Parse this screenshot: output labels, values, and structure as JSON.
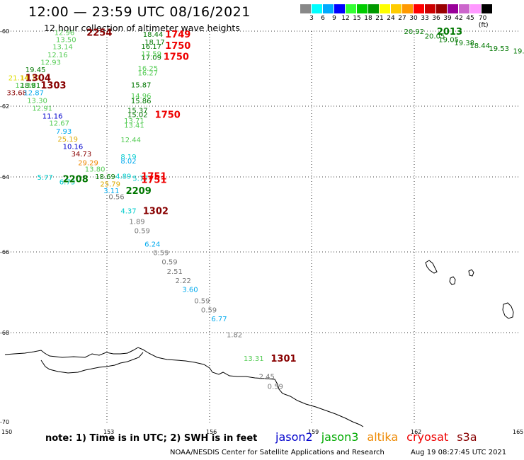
{
  "title": "12:00 — 23:59 UTC 08/16/2021",
  "subtitle": "12 hour collection of altimeter wave heights",
  "colorbar": {
    "colors": [
      "#888888",
      "#00ffff",
      "#00aaff",
      "#0000ff",
      "#33ff33",
      "#00cc00",
      "#009900",
      "#ffff00",
      "#ffcc00",
      "#ff9900",
      "#ff0000",
      "#cc0000",
      "#990000",
      "#990099",
      "#cc66cc",
      "#ff99ff",
      "#000000"
    ],
    "labels": [
      "3",
      "6",
      "9",
      "12",
      "15",
      "18",
      "21",
      "24",
      "27",
      "30",
      "33",
      "36",
      "39",
      "42",
      "45",
      "70 (ft)"
    ]
  },
  "lat_labels": [
    "-60",
    "-62",
    "-64",
    "-66",
    "-68",
    "-70"
  ],
  "lon_labels": [
    "150",
    "153",
    "156",
    "159",
    "162",
    "165"
  ],
  "observations": [
    {
      "t": "12.96",
      "c": "#55cc55",
      "lon": 151.45,
      "lat": -60.03
    },
    {
      "t": "13.50",
      "c": "#55cc55",
      "lon": 151.5,
      "lat": -60.22
    },
    {
      "t": "13.14",
      "c": "#55cc55",
      "lon": 151.4,
      "lat": -60.41
    },
    {
      "t": "12.16",
      "c": "#55cc55",
      "lon": 151.25,
      "lat": -60.62
    },
    {
      "t": "12.93",
      "c": "#55cc55",
      "lon": 151.05,
      "lat": -60.82
    },
    {
      "t": "19.45",
      "c": "#007700",
      "lon": 150.6,
      "lat": -61.02
    },
    {
      "t": "21.14",
      "c": "#dddd00",
      "lon": 150.1,
      "lat": -61.24
    },
    {
      "t": "14.17",
      "c": "#ddaa00",
      "lon": 150.45,
      "lat": -61.24
    },
    {
      "t": "12.39",
      "c": "#55cc55",
      "lon": 150.3,
      "lat": -61.43
    },
    {
      "t": "18.81",
      "c": "#007700",
      "lon": 150.45,
      "lat": -61.43
    },
    {
      "t": "33.68",
      "c": "#880000",
      "lon": 150.05,
      "lat": -61.63
    },
    {
      "t": "12.87",
      "c": "#00aaee",
      "lon": 150.55,
      "lat": -61.63
    },
    {
      "t": "13.30",
      "c": "#55cc55",
      "lon": 150.65,
      "lat": -61.84
    },
    {
      "t": "12.91",
      "c": "#55cc55",
      "lon": 150.8,
      "lat": -62.05
    },
    {
      "t": "11.16",
      "c": "#0000cc",
      "lon": 151.1,
      "lat": -62.27
    },
    {
      "t": "12.67",
      "c": "#55cc55",
      "lon": 151.3,
      "lat": -62.47
    },
    {
      "t": "7.93",
      "c": "#00aaee",
      "lon": 151.5,
      "lat": -62.7
    },
    {
      "t": "25.19",
      "c": "#ddaa00",
      "lon": 151.55,
      "lat": -62.92
    },
    {
      "t": "10.16",
      "c": "#0000cc",
      "lon": 151.7,
      "lat": -63.13
    },
    {
      "t": "34.73",
      "c": "#880000",
      "lon": 151.95,
      "lat": -63.34
    },
    {
      "t": "29.29",
      "c": "#ee8800",
      "lon": 152.15,
      "lat": -63.59
    },
    {
      "t": "13.80",
      "c": "#55cc55",
      "lon": 152.35,
      "lat": -63.77
    },
    {
      "t": "18.69",
      "c": "#007700",
      "lon": 152.65,
      "lat": -63.98
    },
    {
      "t": "25.79",
      "c": "#ddaa00",
      "lon": 152.8,
      "lat": -64.18
    },
    {
      "t": "3.11",
      "c": "#00aaee",
      "lon": 152.9,
      "lat": -64.36
    },
    {
      "t": "5.77",
      "c": "#00cccc",
      "lon": 150.95,
      "lat": -64.0
    },
    {
      "t": "6.73",
      "c": "#00cccc",
      "lon": 151.6,
      "lat": -64.12
    },
    {
      "t": "0.56",
      "c": "#777777",
      "lon": 153.05,
      "lat": -64.52
    },
    {
      "t": "18.44",
      "c": "#007700",
      "lon": 154.05,
      "lat": -60.08
    },
    {
      "t": "18.17",
      "c": "#007700",
      "lon": 154.1,
      "lat": -60.28
    },
    {
      "t": "16.17",
      "c": "#007700",
      "lon": 154.0,
      "lat": -60.4
    },
    {
      "t": "17.09",
      "c": "#007700",
      "lon": 154.0,
      "lat": -60.69
    },
    {
      "t": "17.59",
      "c": "#55cc55",
      "lon": 154.0,
      "lat": -60.59
    },
    {
      "t": "16.25",
      "c": "#55cc55",
      "lon": 153.9,
      "lat": -60.98
    },
    {
      "t": "16.27",
      "c": "#55cc55",
      "lon": 153.9,
      "lat": -61.1
    },
    {
      "t": "15.87",
      "c": "#007700",
      "lon": 153.7,
      "lat": -61.42
    },
    {
      "t": "14.96",
      "c": "#55cc55",
      "lon": 153.7,
      "lat": -61.72
    },
    {
      "t": "15.86",
      "c": "#007700",
      "lon": 153.7,
      "lat": -61.85
    },
    {
      "t": "15.37",
      "c": "#007700",
      "lon": 153.6,
      "lat": -62.11
    },
    {
      "t": "15.02",
      "c": "#007700",
      "lon": 153.6,
      "lat": -62.23
    },
    {
      "t": "13.71",
      "c": "#55cc55",
      "lon": 153.5,
      "lat": -62.4
    },
    {
      "t": "13.41",
      "c": "#55cc55",
      "lon": 153.5,
      "lat": -62.53
    },
    {
      "t": "12.44",
      "c": "#55cc55",
      "lon": 153.4,
      "lat": -62.94
    },
    {
      "t": "8.19",
      "c": "#00cccc",
      "lon": 153.4,
      "lat": -63.42
    },
    {
      "t": "8.02",
      "c": "#00aaee",
      "lon": 153.4,
      "lat": -63.54
    },
    {
      "t": "4.89",
      "c": "#00cccc",
      "lon": 153.25,
      "lat": -63.97
    },
    {
      "t": "5.77",
      "c": "#00cccc",
      "lon": 153.75,
      "lat": -64.03
    },
    {
      "t": "4.37",
      "c": "#00cccc",
      "lon": 153.4,
      "lat": -64.9
    },
    {
      "t": "1.89",
      "c": "#777777",
      "lon": 153.65,
      "lat": -65.18
    },
    {
      "t": "0.59",
      "c": "#777777",
      "lon": 153.8,
      "lat": -65.42
    },
    {
      "t": "6.24",
      "c": "#00aaee",
      "lon": 154.1,
      "lat": -65.78
    },
    {
      "t": "0.59",
      "c": "#777777",
      "lon": 154.35,
      "lat": -66.01
    },
    {
      "t": "0.59",
      "c": "#777777",
      "lon": 154.6,
      "lat": -66.24
    },
    {
      "t": "2.51",
      "c": "#777777",
      "lon": 154.75,
      "lat": -66.47
    },
    {
      "t": "2.22",
      "c": "#777777",
      "lon": 155.0,
      "lat": -66.7
    },
    {
      "t": "3.60",
      "c": "#00aaee",
      "lon": 155.2,
      "lat": -66.92
    },
    {
      "t": "0.59",
      "c": "#777777",
      "lon": 155.55,
      "lat": -67.2
    },
    {
      "t": "0.59",
      "c": "#777777",
      "lon": 155.75,
      "lat": -67.43
    },
    {
      "t": "6.77",
      "c": "#00aaee",
      "lon": 156.05,
      "lat": -67.65
    },
    {
      "t": "1.82",
      "c": "#777777",
      "lon": 156.5,
      "lat": -68.04
    },
    {
      "t": "13.31",
      "c": "#55cc55",
      "lon": 157.0,
      "lat": -68.57
    },
    {
      "t": "2.45",
      "c": "#777777",
      "lon": 157.45,
      "lat": -68.98
    },
    {
      "t": "0.59",
      "c": "#777777",
      "lon": 157.7,
      "lat": -69.2
    },
    {
      "t": "20.92",
      "c": "#007700",
      "lon": 161.7,
      "lat": -60.0
    },
    {
      "t": "20.05",
      "c": "#007700",
      "lon": 162.3,
      "lat": -60.12
    },
    {
      "t": "19.05",
      "c": "#007700",
      "lon": 162.7,
      "lat": -60.22
    },
    {
      "t": "19.38",
      "c": "#007700",
      "lon": 163.15,
      "lat": -60.3
    },
    {
      "t": "18.44",
      "c": "#007700",
      "lon": 163.6,
      "lat": -60.38
    },
    {
      "t": "19.53",
      "c": "#007700",
      "lon": 164.15,
      "lat": -60.45
    },
    {
      "t": "19.",
      "c": "#007700",
      "lon": 164.85,
      "lat": -60.52
    }
  ],
  "time_stamps": [
    {
      "t": "2254",
      "c": "#880000",
      "lon": 152.4,
      "lat": -60.03
    },
    {
      "t": "1304",
      "c": "#880000",
      "lon": 150.6,
      "lat": -61.24
    },
    {
      "t": "1303",
      "c": "#880000",
      "lon": 151.05,
      "lat": -61.43
    },
    {
      "t": "1749",
      "c": "#ee0000",
      "lon": 154.7,
      "lat": -60.08
    },
    {
      "t": "1750",
      "c": "#ee0000",
      "lon": 154.7,
      "lat": -60.38
    },
    {
      "t": "1750",
      "c": "#ee0000",
      "lon": 154.65,
      "lat": -60.67
    },
    {
      "t": "1750",
      "c": "#ee0000",
      "lon": 154.4,
      "lat": -62.23
    },
    {
      "t": "1751",
      "c": "#ee0000",
      "lon": 154.0,
      "lat": -63.97
    },
    {
      "t": "1751",
      "c": "#ee0000",
      "lon": 154.0,
      "lat": -64.07
    },
    {
      "t": "2208",
      "c": "#007700",
      "lon": 151.7,
      "lat": -64.05
    },
    {
      "t": "2209",
      "c": "#007700",
      "lon": 153.55,
      "lat": -64.36
    },
    {
      "t": "1302",
      "c": "#880000",
      "lon": 154.05,
      "lat": -64.9
    },
    {
      "t": "1301",
      "c": "#880000",
      "lon": 157.8,
      "lat": -68.57
    },
    {
      "t": "2013",
      "c": "#007700",
      "lon": 162.65,
      "lat": -60.0
    }
  ],
  "note": "note: 1) Time is in UTC; 2) SWH is in feet",
  "legend": [
    {
      "name": "jason2",
      "color": "#0000cc"
    },
    {
      "name": "jason3",
      "color": "#00aa00"
    },
    {
      "name": "altika",
      "color": "#ee8800"
    },
    {
      "name": "cryosat",
      "color": "#ee0000"
    },
    {
      "name": "s3a",
      "color": "#880000"
    }
  ],
  "credit": "NOAA/NESDIS Center for Satellite Applications and Research",
  "timestamp": "Aug 19 08:27:45 UTC 2021"
}
